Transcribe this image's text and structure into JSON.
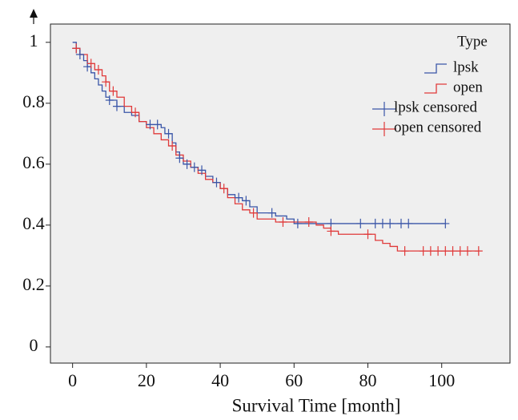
{
  "chart_data": {
    "type": "line",
    "x_label": "Survival Time [month]",
    "legend_title": "Type",
    "legend": "top right",
    "xlim": [
      -6,
      118.5
    ],
    "ylim": [
      -0.053,
      1.06
    ],
    "xticks": [
      0,
      20,
      40,
      60,
      80,
      100
    ],
    "yticks": [
      0,
      0.2,
      0.4,
      0.6,
      0.8,
      1
    ],
    "grid": false,
    "series": [
      {
        "name": "lpsk",
        "color": "#3a56a8",
        "draw": "step",
        "x": [
          0,
          1,
          2,
          3,
          4,
          5,
          6,
          7,
          8,
          9,
          10,
          12,
          14,
          16,
          18,
          20,
          24,
          25,
          27,
          28,
          29,
          30,
          32,
          34,
          36,
          38,
          40,
          42,
          44,
          46,
          48,
          50,
          55,
          58,
          60,
          101
        ],
        "values": [
          1,
          0.98,
          0.96,
          0.94,
          0.92,
          0.9,
          0.88,
          0.86,
          0.84,
          0.82,
          0.81,
          0.79,
          0.77,
          0.76,
          0.74,
          0.73,
          0.72,
          0.7,
          0.67,
          0.64,
          0.62,
          0.6,
          0.59,
          0.58,
          0.56,
          0.54,
          0.52,
          0.5,
          0.49,
          0.48,
          0.46,
          0.44,
          0.43,
          0.42,
          0.405,
          0.405
        ]
      },
      {
        "name": "open",
        "color": "#e03a3a",
        "draw": "step",
        "x": [
          0,
          2,
          4,
          6,
          8,
          9,
          10,
          12,
          14,
          16,
          18,
          20,
          22,
          24,
          26,
          28,
          30,
          32,
          34,
          36,
          38,
          40,
          42,
          44,
          46,
          48,
          50,
          55,
          66,
          68,
          70,
          72,
          82,
          84,
          86,
          88,
          110
        ],
        "values": [
          0.98,
          0.96,
          0.93,
          0.91,
          0.89,
          0.87,
          0.84,
          0.82,
          0.79,
          0.77,
          0.74,
          0.72,
          0.7,
          0.68,
          0.66,
          0.63,
          0.61,
          0.59,
          0.57,
          0.55,
          0.54,
          0.52,
          0.49,
          0.47,
          0.45,
          0.44,
          0.42,
          0.41,
          0.4,
          0.39,
          0.38,
          0.37,
          0.35,
          0.34,
          0.33,
          0.315,
          0.315
        ]
      },
      {
        "name": "lpsk censored",
        "color": "#3a56a8",
        "draw": "censored",
        "x": [
          1,
          2,
          4,
          10,
          12,
          21,
          23,
          26,
          29,
          31,
          33,
          35,
          39,
          45,
          47,
          54,
          61,
          70,
          78,
          82,
          84,
          86,
          89,
          91,
          101
        ],
        "values": [
          0.98,
          0.96,
          0.92,
          0.81,
          0.79,
          0.73,
          0.73,
          0.7,
          0.62,
          0.6,
          0.59,
          0.58,
          0.54,
          0.49,
          0.48,
          0.44,
          0.405,
          0.405,
          0.405,
          0.405,
          0.405,
          0.405,
          0.405,
          0.405,
          0.405
        ]
      },
      {
        "name": "open censored",
        "color": "#e03a3a",
        "draw": "censored",
        "x": [
          1,
          5,
          7,
          9,
          11,
          17,
          27,
          41,
          49,
          57,
          64,
          70,
          80,
          90,
          95,
          97,
          99,
          101,
          103,
          105,
          107,
          110
        ],
        "values": [
          0.98,
          0.93,
          0.91,
          0.87,
          0.84,
          0.77,
          0.66,
          0.52,
          0.44,
          0.41,
          0.41,
          0.38,
          0.37,
          0.315,
          0.315,
          0.315,
          0.315,
          0.315,
          0.315,
          0.315,
          0.315,
          0.315
        ]
      }
    ]
  }
}
